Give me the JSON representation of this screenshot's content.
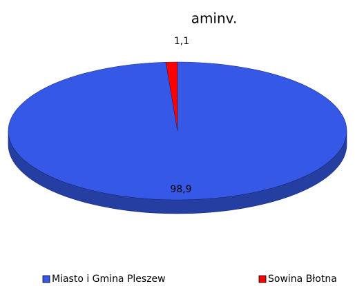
{
  "chart_data": {
    "type": "pie",
    "title": "aminv.",
    "categories": [
      "Miasto i Gmina Pleszew",
      "Sowina Błotna"
    ],
    "values": [
      98.9,
      1.1
    ],
    "value_labels": [
      "98,9",
      "1,1"
    ],
    "colors": [
      "#3559e6",
      "#ff0000"
    ],
    "legend": "bottom"
  }
}
